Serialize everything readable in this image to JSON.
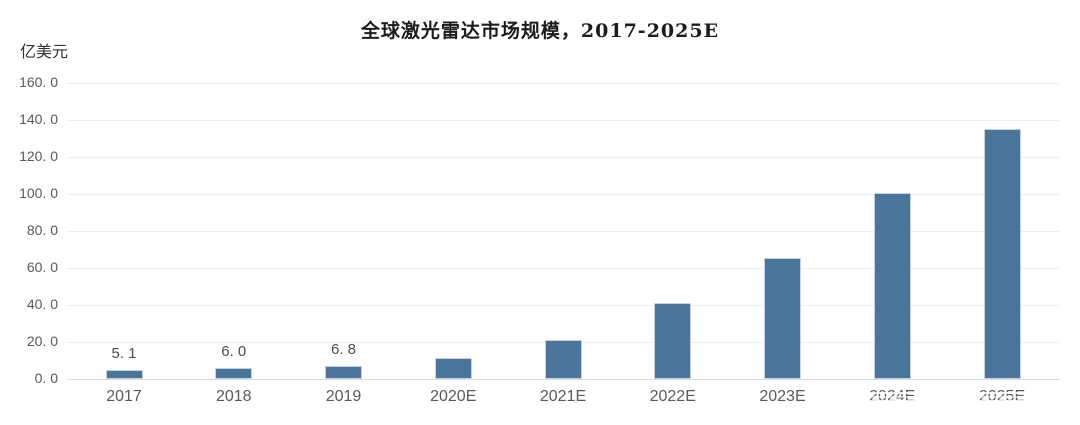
{
  "header": {
    "title": "全球激光雷达市场规模，2017-2025E",
    "unit_label": "亿美元"
  },
  "colors": {
    "bar": "#4a759b",
    "bar_edge": "#c6d4e1",
    "gridline": "#eeeeee",
    "axis_line": "#dcdcdc",
    "tick_text": "#595959",
    "title_text": "#1c1c1c"
  },
  "chart_data": {
    "type": "bar",
    "title": "全球激光雷达市场规模，2017-2025E",
    "ylabel": "亿美元",
    "xlabel": "",
    "categories": [
      "2017",
      "2018",
      "2019",
      "2020E",
      "2021E",
      "2022E",
      "2023E",
      "2024E",
      "2025E"
    ],
    "values": [
      5.1,
      6.0,
      6.8,
      11.2,
      21.0,
      41.0,
      65.5,
      100.3,
      135.4
    ],
    "data_labels": [
      "5. 1",
      "6. 0",
      "6. 8",
      "",
      "",
      "",
      "",
      "",
      ""
    ],
    "y_ticks": [
      "160. 0",
      "140. 0",
      "120. 0",
      "100. 0",
      "80. 0",
      "60. 0",
      "40. 0",
      "20. 0",
      "0. 0"
    ],
    "y_tick_values": [
      160,
      140,
      120,
      100,
      80,
      60,
      40,
      20,
      0
    ],
    "ylim": [
      0,
      160
    ],
    "grid": true,
    "legend": false,
    "watermark_smudge_category_indexes": [
      7,
      8
    ]
  }
}
